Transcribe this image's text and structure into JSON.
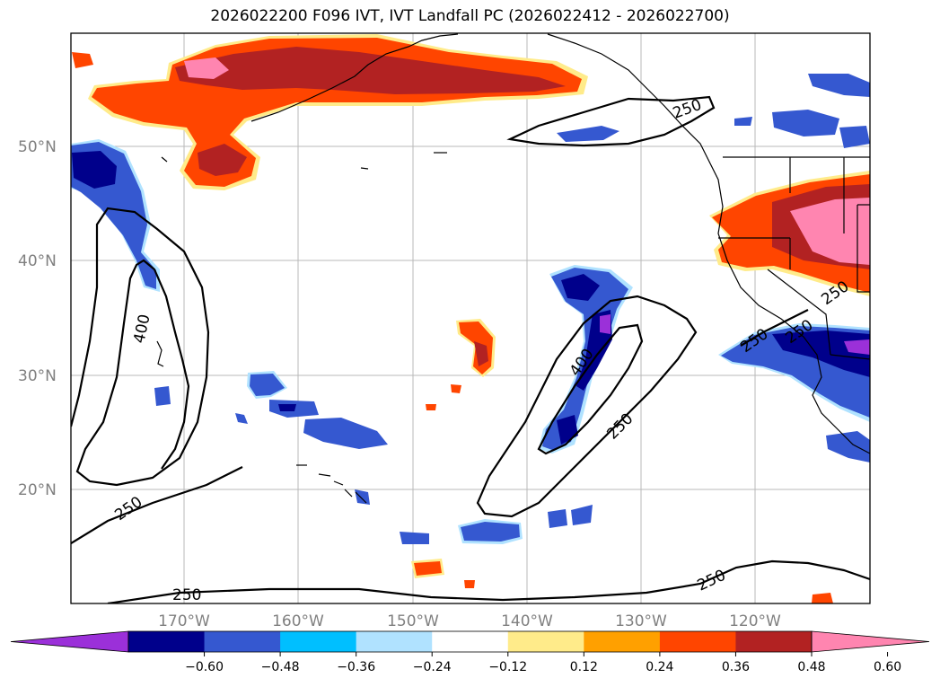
{
  "title": "2026022200 F096 IVT, IVT Landfall PC (2026022412 - 2026022700)",
  "lat_labels": [
    "50°N",
    "40°N",
    "30°N",
    "20°N"
  ],
  "lon_labels": [
    "170°W",
    "160°W",
    "150°W",
    "140°W",
    "130°W",
    "120°W"
  ],
  "contour_labels": [
    "400",
    "250",
    "400",
    "250",
    "250",
    "250",
    "250",
    "250",
    "250",
    "250"
  ],
  "colorbar": {
    "colors": [
      "#9b30d9",
      "#00008b",
      "#3558d0",
      "#00bfff",
      "#b0e2ff",
      "#ffffff",
      "#ffeb8a",
      "#ffa000",
      "#ff4500",
      "#b22222",
      "#ff85b0"
    ],
    "ticks": [
      "−0.60",
      "−0.48",
      "−0.36",
      "−0.24",
      "−0.12",
      "0.12",
      "0.24",
      "0.36",
      "0.48",
      "0.60"
    ]
  },
  "icons": {
    "map": "north-pacific-map",
    "colorbar": "colorbar-scale"
  }
}
